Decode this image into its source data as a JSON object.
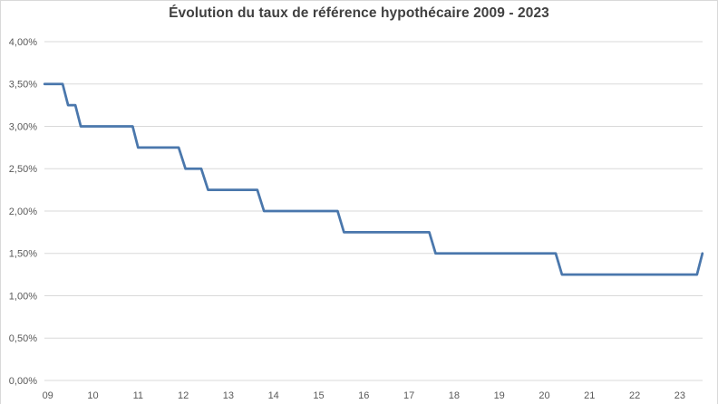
{
  "chart_data": {
    "type": "line",
    "title": "Évolution du taux de référence hypothécaire 2009 - 2023",
    "title_color": "#404040",
    "legend": "none",
    "grid": true,
    "gridline_color": "#d9d9d9",
    "axis_label_color": "#595959",
    "xlabel": "",
    "ylabel": "",
    "ylim": [
      0,
      4
    ],
    "xlim": [
      2008.93,
      2023.55
    ],
    "y_ticks": [
      {
        "label": "4,00%",
        "value": 4.0
      },
      {
        "label": "3,50%",
        "value": 3.5
      },
      {
        "label": "3,00%",
        "value": 3.0
      },
      {
        "label": "2,50%",
        "value": 2.5
      },
      {
        "label": "2,00%",
        "value": 2.0
      },
      {
        "label": "1,50%",
        "value": 1.5
      },
      {
        "label": "1,00%",
        "value": 1.0
      },
      {
        "label": "0,50%",
        "value": 0.5
      },
      {
        "label": "0,00%",
        "value": 0.0
      }
    ],
    "x_ticks": [
      {
        "label": "09",
        "year": 2009
      },
      {
        "label": "10",
        "year": 2010
      },
      {
        "label": "11",
        "year": 2011
      },
      {
        "label": "12",
        "year": 2012
      },
      {
        "label": "13",
        "year": 2013
      },
      {
        "label": "14",
        "year": 2014
      },
      {
        "label": "15",
        "year": 2015
      },
      {
        "label": "16",
        "year": 2016
      },
      {
        "label": "17",
        "year": 2017
      },
      {
        "label": "18",
        "year": 2018
      },
      {
        "label": "19",
        "year": 2019
      },
      {
        "label": "20",
        "year": 2020
      },
      {
        "label": "21",
        "year": 2021
      },
      {
        "label": "22",
        "year": 2022
      },
      {
        "label": "23",
        "year": 2023
      }
    ],
    "series": [
      {
        "name": "Taux de référence hypothécaire",
        "color": "#4a77ac",
        "stroke_width": 2.75,
        "points": [
          [
            2008.93,
            3.5
          ],
          [
            2009.33,
            3.5
          ],
          [
            2009.45,
            3.25
          ],
          [
            2009.61,
            3.25
          ],
          [
            2009.73,
            3.0
          ],
          [
            2010.88,
            3.0
          ],
          [
            2011.0,
            2.75
          ],
          [
            2011.9,
            2.75
          ],
          [
            2012.05,
            2.5
          ],
          [
            2012.4,
            2.5
          ],
          [
            2012.55,
            2.25
          ],
          [
            2013.64,
            2.25
          ],
          [
            2013.79,
            2.0
          ],
          [
            2015.42,
            2.0
          ],
          [
            2015.56,
            1.75
          ],
          [
            2017.45,
            1.75
          ],
          [
            2017.59,
            1.5
          ],
          [
            2020.25,
            1.5
          ],
          [
            2020.39,
            1.25
          ],
          [
            2023.38,
            1.25
          ],
          [
            2023.5,
            1.5
          ]
        ]
      }
    ]
  }
}
